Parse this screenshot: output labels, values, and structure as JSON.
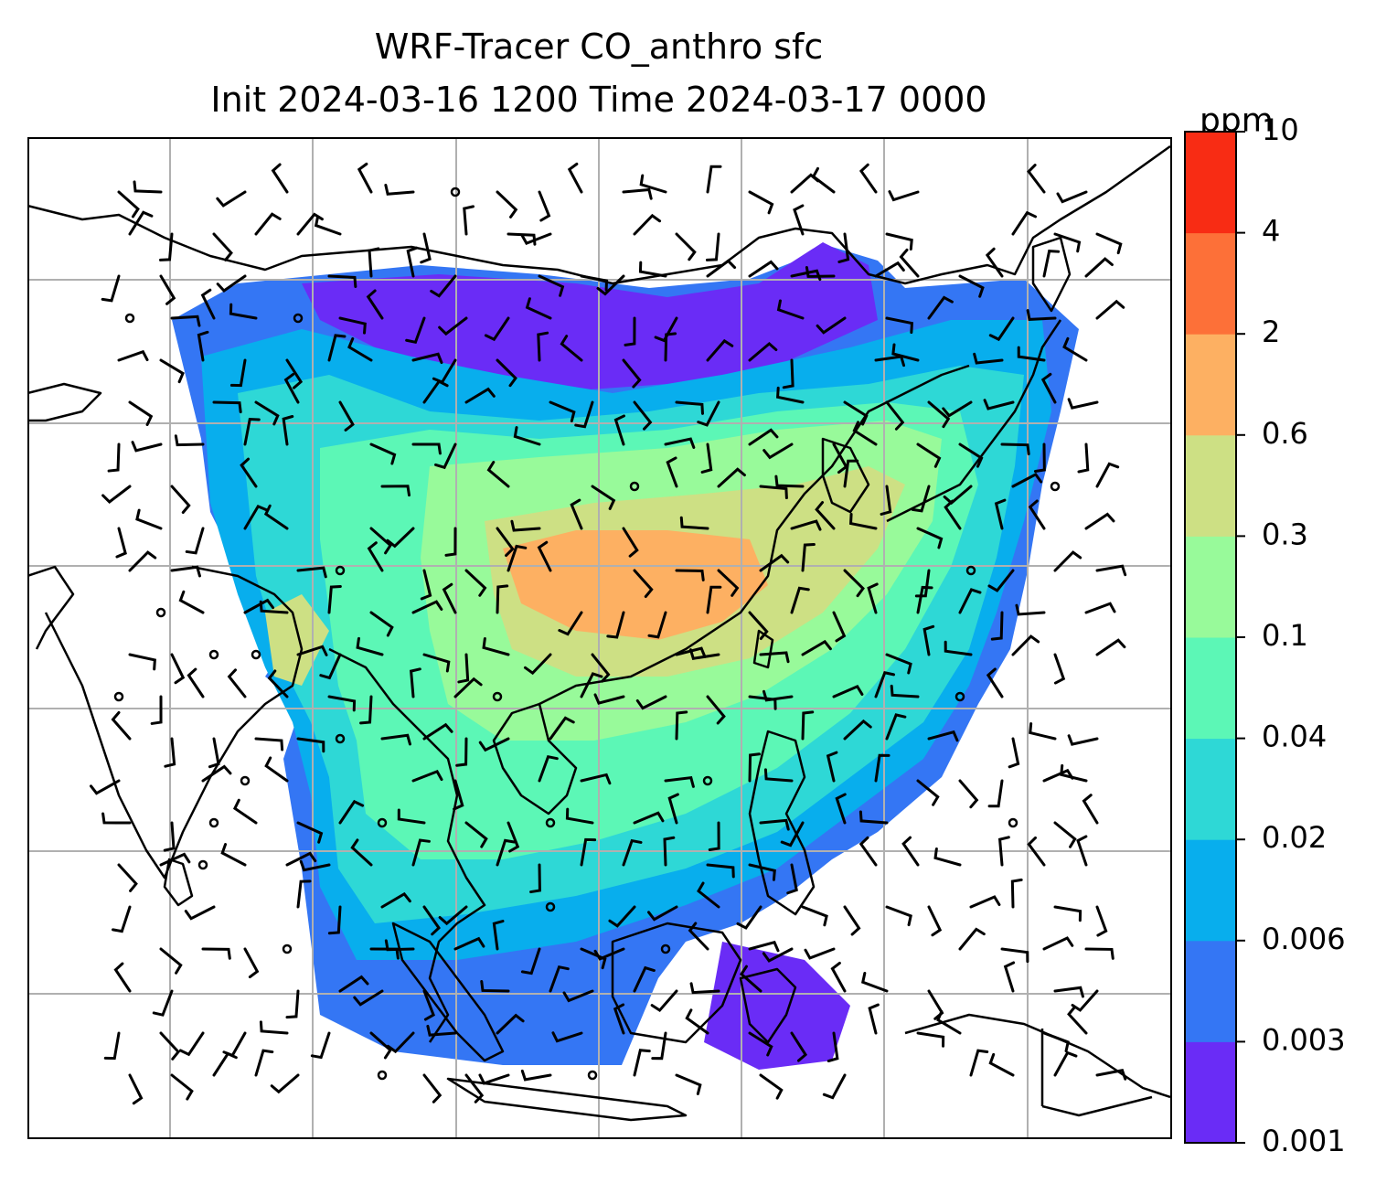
{
  "title": {
    "line1": "WRF-Tracer CO_anthro sfc",
    "line2": "Init 2024-03-16 1200 Time 2024-03-17 0000"
  },
  "colorbar": {
    "unit": "ppm",
    "levels": [
      "0.001",
      "0.003",
      "0.006",
      "0.02",
      "0.04",
      "0.1",
      "0.3",
      "0.6",
      "2",
      "4",
      "10"
    ],
    "colors": [
      "#6a2cf6",
      "#3476f4",
      "#08aeed",
      "#2ed8d6",
      "#5cf7b6",
      "#98fa9a",
      "#cde084",
      "#fdb062",
      "#fd7038",
      "#f82c14"
    ]
  },
  "map": {
    "field_colors": {
      "low": "#6a2cf6",
      "blue": "#3476f4",
      "cyan": "#08aeed",
      "teal": "#2ed8d6",
      "green": "#5cf7b6",
      "lightgreen": "#98fa9a",
      "olive": "#cde084",
      "orange": "#fdb062"
    },
    "grid_color": "#b0b0b0",
    "coastline_color": "#000000"
  }
}
